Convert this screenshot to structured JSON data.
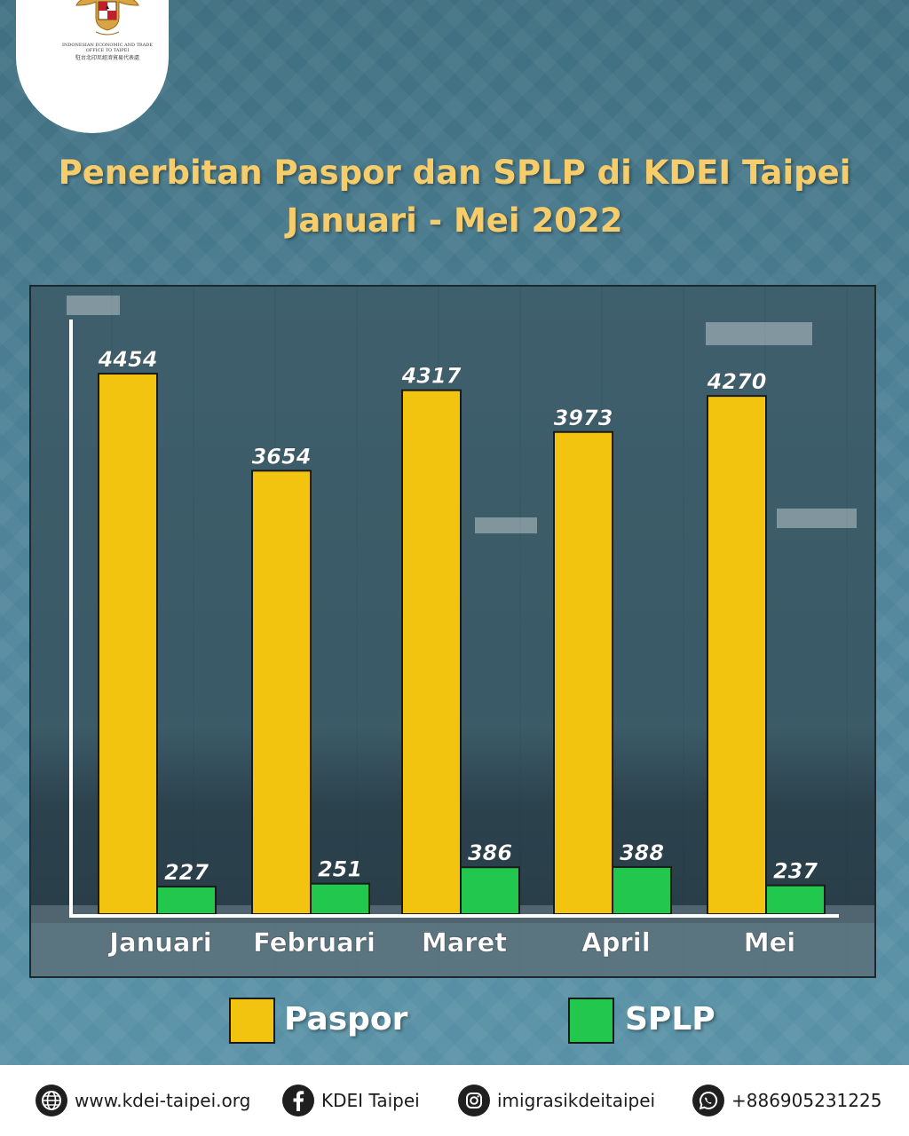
{
  "logo": {
    "org_en": "INDONESIAN ECONOMIC AND TRADE OFFICE TO TAIPEI",
    "org_cn": "駐台北印尼經濟貿易代表處",
    "icon": "garuda-emblem-icon"
  },
  "title": {
    "line1": "Penerbitan Paspor dan SPLP di KDEI Taipei",
    "line2": "Januari - Mei 2022"
  },
  "chart_data": {
    "type": "bar",
    "title": "Penerbitan Paspor dan SPLP di KDEI Taipei Januari - Mei 2022",
    "categories": [
      "Januari",
      "Februari",
      "Maret",
      "April",
      "Mei"
    ],
    "series": [
      {
        "name": "Paspor",
        "values": [
          4454,
          3654,
          4317,
          3973,
          4270
        ],
        "color": "#f2c40f"
      },
      {
        "name": "SPLP",
        "values": [
          227,
          251,
          386,
          388,
          237
        ],
        "color": "#22c84e"
      }
    ],
    "ylim": [
      0,
      4900
    ],
    "xlabel": "",
    "ylabel": "",
    "grid": false,
    "legend": "bottom"
  },
  "legend": [
    {
      "label": "Paspor",
      "color": "#f2c40f"
    },
    {
      "label": "SPLP",
      "color": "#22c84e"
    }
  ],
  "footer": {
    "website": "www.kdei-taipei.org",
    "facebook": "KDEI Taipei",
    "instagram": "imigrasikdeitaipei",
    "whatsapp": "+886905231225"
  }
}
